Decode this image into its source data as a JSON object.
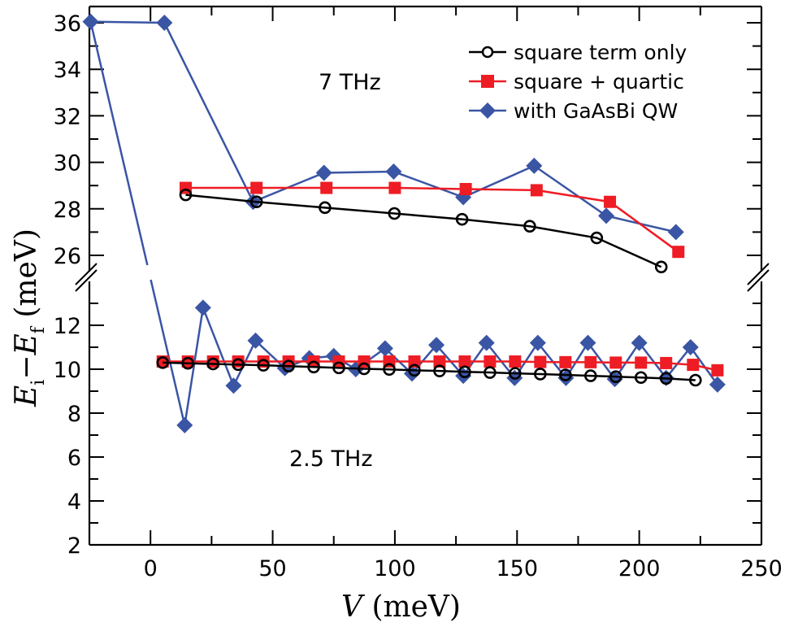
{
  "chart_data": {
    "type": "line",
    "title": "",
    "xlabel": "V (meV)",
    "ylabel": "Ei − Ef (meV)",
    "xlim": [
      -25,
      250
    ],
    "ylim_upper": [
      25.3,
      36.7
    ],
    "ylim_lower": [
      2,
      14
    ],
    "broken_y_axis": true,
    "grid": false,
    "legend_position": "top-right",
    "x_ticks": [
      "0",
      "50",
      "100",
      "150",
      "200",
      "250"
    ],
    "y_ticks_upper": [
      "26",
      "28",
      "30",
      "32",
      "34",
      "36"
    ],
    "y_ticks_lower": [
      "2",
      "4",
      "6",
      "8",
      "10",
      "12"
    ],
    "annotations": [
      "7 THz",
      "2.5 THz"
    ],
    "colors": {
      "square_term_only": "#000000",
      "square_quartic": "#ee1c24",
      "gaasbi": "#3a55a4"
    },
    "series": [
      {
        "name": "square term only",
        "marker": "open-circle",
        "upper": {
          "x": [
            14.4,
            43.4,
            71.4,
            99.8,
            127.5,
            155.2,
            182.6,
            209.0
          ],
          "y": [
            28.6,
            28.3,
            28.05,
            27.8,
            27.55,
            27.25,
            26.75,
            25.5
          ]
        },
        "lower": {
          "x": [
            5,
            15.3,
            25.6,
            35.9,
            46.2,
            56.5,
            66.8,
            77.1,
            87.4,
            97.7,
            108,
            118.3,
            128.6,
            138.9,
            149.2,
            159.5,
            169.8,
            180.1,
            190.4,
            200.7,
            211,
            223
          ],
          "y": [
            10.3,
            10.27,
            10.24,
            10.21,
            10.18,
            10.14,
            10.1,
            10.06,
            10.02,
            9.99,
            9.95,
            9.92,
            9.88,
            9.85,
            9.81,
            9.78,
            9.74,
            9.7,
            9.66,
            9.62,
            9.58,
            9.5
          ]
        }
      },
      {
        "name": "square + quartic",
        "marker": "filled-square",
        "upper": {
          "x": [
            14.4,
            43.4,
            72,
            100,
            129,
            158,
            188,
            216
          ],
          "y": [
            28.9,
            28.9,
            28.9,
            28.9,
            28.85,
            28.8,
            28.3,
            26.15
          ]
        },
        "lower": {
          "x": [
            5,
            15.3,
            25.6,
            35.9,
            46.2,
            56.5,
            66.8,
            77.1,
            87.4,
            97.7,
            108,
            118.3,
            128.6,
            138.9,
            149.2,
            159.5,
            169.8,
            180.1,
            190.4,
            200.7,
            211,
            222,
            232
          ],
          "y": [
            10.35,
            10.35,
            10.35,
            10.35,
            10.35,
            10.35,
            10.35,
            10.35,
            10.35,
            10.35,
            10.35,
            10.35,
            10.35,
            10.35,
            10.35,
            10.33,
            10.32,
            10.32,
            10.3,
            10.3,
            10.28,
            10.2,
            9.95
          ]
        }
      },
      {
        "name": "with GaAsBi QW",
        "marker": "filled-diamond",
        "upper": {
          "x": [
            -24.5,
            5.7,
            42,
            71,
            99.5,
            128,
            157,
            186.5,
            215
          ],
          "y": [
            36.05,
            36.0,
            28.3,
            29.55,
            29.6,
            28.5,
            29.85,
            27.7,
            27.0
          ]
        },
        "lower": {
          "x": [
            14,
            21.5,
            34,
            43,
            55,
            65,
            75,
            84,
            96,
            107,
            117,
            128,
            137.5,
            149,
            158.5,
            170,
            179,
            190,
            200,
            211,
            221,
            232
          ],
          "y": [
            7.45,
            12.8,
            9.25,
            11.3,
            10.05,
            10.5,
            10.6,
            10.0,
            10.95,
            9.8,
            11.1,
            9.7,
            11.2,
            9.6,
            11.2,
            9.6,
            11.2,
            9.55,
            11.2,
            9.6,
            11.0,
            9.3
          ]
        }
      }
    ]
  },
  "labels": {
    "ann_upper": "7 THz",
    "ann_lower": "2.5 THz",
    "x_title_var": "V",
    "x_title_unit": " (meV)",
    "y_title_e1": "E",
    "y_title_sub1": "i",
    "y_title_minus": "−",
    "y_title_e2": "E",
    "y_title_sub2": "f",
    "y_title_unit": " (meV)",
    "legend": [
      "square term only",
      "square + quartic",
      "with GaAsBi QW"
    ]
  }
}
